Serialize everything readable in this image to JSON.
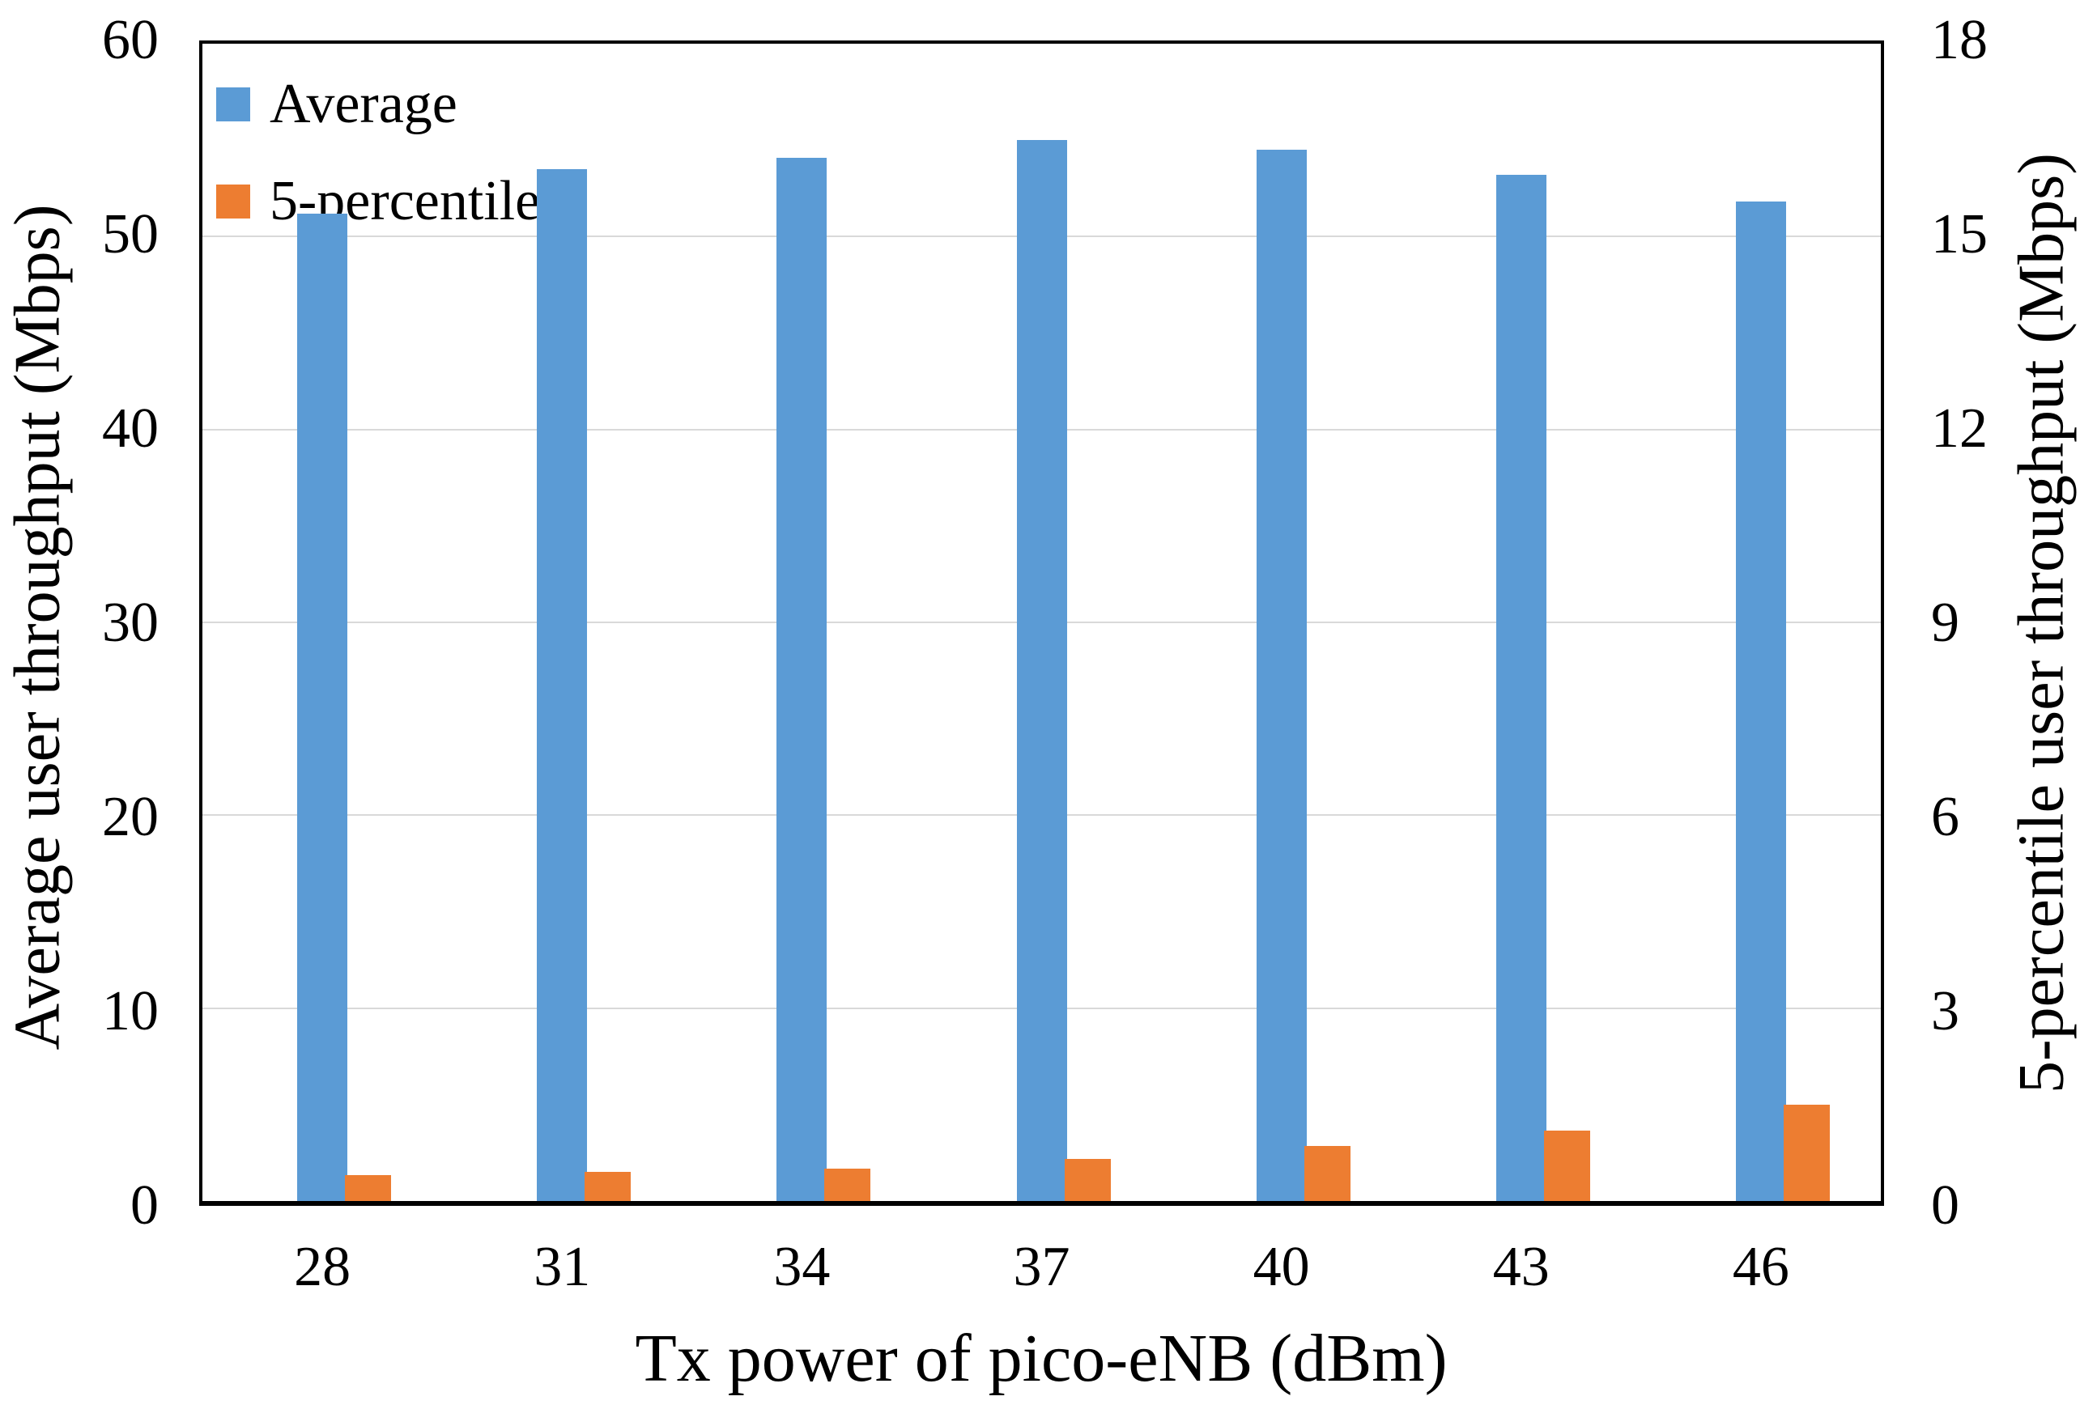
{
  "chart_data": {
    "type": "bar",
    "title": "",
    "categories": [
      "28",
      "31",
      "34",
      "37",
      "40",
      "43",
      "46"
    ],
    "series": [
      {
        "name": "Average",
        "axis": "left",
        "color": "#5B9BD5",
        "values": [
          51.2,
          53.5,
          54.1,
          55.0,
          54.5,
          53.2,
          51.8
        ]
      },
      {
        "name": "5-percentile",
        "axis": "right",
        "color": "#ED7D31",
        "values": [
          0.4,
          0.45,
          0.5,
          0.65,
          0.85,
          1.1,
          1.5
        ]
      }
    ],
    "xlabel": "Tx power of pico-eNB (dBm)",
    "ylabel_left": "Average user throughput (Mbps)",
    "ylabel_right": "5-percentile user throughput (Mbps)",
    "left_axis": {
      "min": 0,
      "max": 60,
      "step": 10,
      "ticks": [
        "0",
        "10",
        "20",
        "30",
        "40",
        "50",
        "60"
      ]
    },
    "right_axis": {
      "min": 0,
      "max": 18,
      "step": 3,
      "ticks": [
        "0",
        "3",
        "6",
        "9",
        "12",
        "15",
        "18"
      ]
    },
    "grid": "horizontal-on",
    "legend_position": "inside-top-left"
  },
  "legend": {
    "items": [
      {
        "label": "Average",
        "color": "#5B9BD5"
      },
      {
        "label": "5-percentile",
        "color": "#ED7D31"
      }
    ]
  },
  "colors": {
    "bar_average": "#5B9BD5",
    "bar_5percentile": "#ED7D31",
    "gridline": "#D9D9D9",
    "axis_frame": "#000000",
    "text": "#000000",
    "background": "#FFFFFF"
  }
}
